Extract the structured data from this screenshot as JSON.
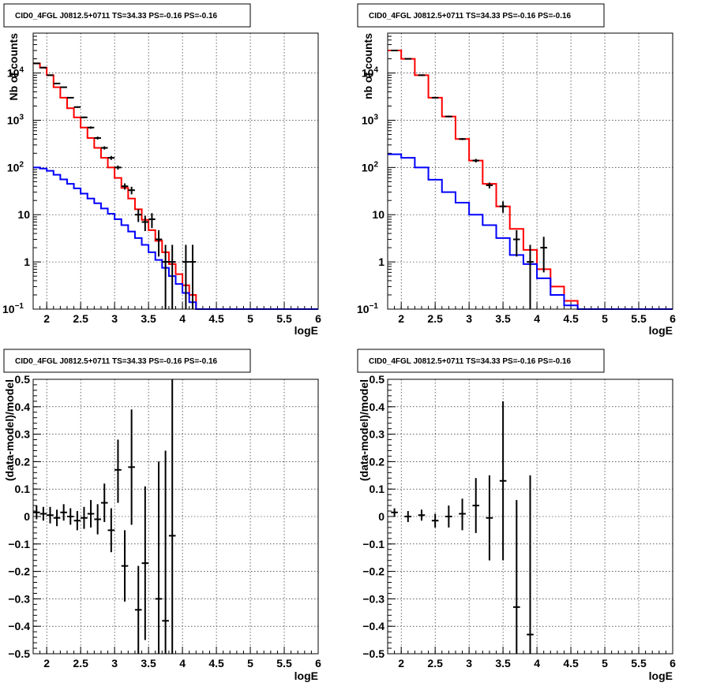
{
  "chart_data": [
    {
      "id": "top-left",
      "type": "line",
      "title": "CID0_4FGL J0812.5+0711 TS=34.33 PS=-0.16 PS=-0.16",
      "xlabel": "logE",
      "ylabel": "Nb of counts",
      "xlim": [
        1.8,
        6
      ],
      "ylim": [
        0.1,
        70000
      ],
      "yscale": "log",
      "grid": true,
      "xticks": [
        "2",
        "2.5",
        "3",
        "3.5",
        "4",
        "4.5",
        "5",
        "5.5",
        "6"
      ],
      "yticks": [
        {
          "v": 0.1,
          "label": "10",
          "sup": "−1"
        },
        {
          "v": 1,
          "label": "1"
        },
        {
          "v": 10,
          "label": "10"
        },
        {
          "v": 100,
          "label": "10",
          "sup": "2"
        },
        {
          "v": 1000,
          "label": "10",
          "sup": "3"
        },
        {
          "v": 10000,
          "label": "10",
          "sup": "4"
        }
      ],
      "series": [
        {
          "color": "#ff0000",
          "kind": "step",
          "edges": [
            1.8,
            1.9,
            2.0,
            2.1,
            2.2,
            2.3,
            2.4,
            2.5,
            2.6,
            2.7,
            2.8,
            2.9,
            3.0,
            3.1,
            3.2,
            3.3,
            3.4,
            3.5,
            3.6,
            3.7,
            3.8,
            3.9,
            4.0,
            4.1,
            4.2,
            4.3,
            4.4,
            4.5,
            4.6,
            4.7,
            4.8,
            4.9,
            5.0,
            5.1,
            5.2,
            5.3,
            5.4,
            5.5,
            5.6,
            5.7,
            5.8,
            5.9,
            6.0
          ],
          "values": [
            16000,
            13000,
            9000,
            5000,
            3000,
            1800,
            1150,
            700,
            420,
            260,
            160,
            100,
            60,
            37,
            22,
            13,
            7.8,
            4.7,
            2.8,
            1.6,
            0.9,
            0.55,
            0.32,
            0.2,
            0.1,
            0.1,
            0.1,
            0.1,
            0.1,
            0.1,
            0.1,
            0.1,
            0.1,
            0.1,
            0.1,
            0.1,
            0.1,
            0.1,
            0.1,
            0.1,
            0.1,
            0.1
          ]
        },
        {
          "color": "#0000ff",
          "kind": "step",
          "edges": [
            1.8,
            1.9,
            2.0,
            2.1,
            2.2,
            2.3,
            2.4,
            2.5,
            2.6,
            2.7,
            2.8,
            2.9,
            3.0,
            3.1,
            3.2,
            3.3,
            3.4,
            3.5,
            3.6,
            3.7,
            3.8,
            3.9,
            4.0,
            4.1,
            4.2,
            4.3,
            4.4,
            4.5,
            4.6,
            4.7,
            4.8,
            4.9,
            5.0,
            5.1,
            5.2,
            5.3,
            5.4,
            5.5,
            5.6,
            5.7,
            5.8,
            5.9,
            6.0
          ],
          "values": [
            100,
            95,
            85,
            70,
            56,
            45,
            36,
            28,
            22,
            17.5,
            13.5,
            10.5,
            8,
            6,
            4.4,
            3.2,
            2.3,
            1.6,
            1.1,
            0.75,
            0.5,
            0.34,
            0.22,
            0.14,
            0.1,
            0.1,
            0.1,
            0.1,
            0.1,
            0.1,
            0.1,
            0.1,
            0.1,
            0.1,
            0.1,
            0.1,
            0.1,
            0.1,
            0.1,
            0.1,
            0.1,
            0.1
          ]
        }
      ],
      "points": [
        {
          "x": 1.85,
          "y": 16000,
          "ylo": 15800,
          "yhi": 16200
        },
        {
          "x": 1.95,
          "y": 13000,
          "ylo": 12800,
          "yhi": 13200
        },
        {
          "x": 2.05,
          "y": 9000,
          "ylo": 8800,
          "yhi": 9200
        },
        {
          "x": 2.15,
          "y": 6000,
          "ylo": 5850,
          "yhi": 6150
        },
        {
          "x": 2.25,
          "y": 5000,
          "ylo": 4850,
          "yhi": 5150
        },
        {
          "x": 2.35,
          "y": 3000,
          "ylo": 2900,
          "yhi": 3100
        },
        {
          "x": 2.45,
          "y": 1900,
          "ylo": 1830,
          "yhi": 1970
        },
        {
          "x": 2.55,
          "y": 1150,
          "ylo": 1100,
          "yhi": 1200
        },
        {
          "x": 2.65,
          "y": 700,
          "ylo": 660,
          "yhi": 740
        },
        {
          "x": 2.75,
          "y": 420,
          "ylo": 390,
          "yhi": 450
        },
        {
          "x": 2.85,
          "y": 260,
          "ylo": 240,
          "yhi": 280
        },
        {
          "x": 2.95,
          "y": 160,
          "ylo": 145,
          "yhi": 175
        },
        {
          "x": 3.05,
          "y": 100,
          "ylo": 90,
          "yhi": 110
        },
        {
          "x": 3.15,
          "y": 40,
          "ylo": 34,
          "yhi": 46
        },
        {
          "x": 3.25,
          "y": 33,
          "ylo": 27,
          "yhi": 39
        },
        {
          "x": 3.35,
          "y": 10,
          "ylo": 7,
          "yhi": 13
        },
        {
          "x": 3.45,
          "y": 7,
          "ylo": 4.5,
          "yhi": 9.5
        },
        {
          "x": 3.55,
          "y": 8,
          "ylo": 5.2,
          "yhi": 10.8
        },
        {
          "x": 3.65,
          "y": 3,
          "ylo": 1.3,
          "yhi": 4.7
        },
        {
          "x": 3.75,
          "y": 1,
          "ylo": 0.1,
          "yhi": 2.3
        },
        {
          "x": 3.85,
          "y": 1,
          "ylo": 0.1,
          "yhi": 2.3
        },
        {
          "x": 4.05,
          "y": 1,
          "ylo": 0.1,
          "yhi": 2.3
        },
        {
          "x": 4.15,
          "y": 1,
          "ylo": 0.1,
          "yhi": 2.3
        }
      ]
    },
    {
      "id": "top-right",
      "type": "line",
      "title": "CID0_4FGL J0812.5+0711 TS=34.33 PS=-0.16 PS=-0.16",
      "xlabel": "logE",
      "ylabel": "nb of counts",
      "xlim": [
        1.8,
        6
      ],
      "ylim": [
        0.1,
        70000
      ],
      "yscale": "log",
      "grid": true,
      "xticks": [
        "2",
        "2.5",
        "3",
        "3.5",
        "4",
        "4.5",
        "5",
        "5.5",
        "6"
      ],
      "yticks": [
        {
          "v": 0.1,
          "label": "10",
          "sup": "−1"
        },
        {
          "v": 1,
          "label": "1"
        },
        {
          "v": 10,
          "label": "10"
        },
        {
          "v": 100,
          "label": "10",
          "sup": "2"
        },
        {
          "v": 1000,
          "label": "10",
          "sup": "3"
        },
        {
          "v": 10000,
          "label": "10",
          "sup": "4"
        }
      ],
      "series": [
        {
          "color": "#ff0000",
          "kind": "step",
          "edges": [
            1.8,
            2.0,
            2.2,
            2.4,
            2.6,
            2.8,
            3.0,
            3.2,
            3.4,
            3.6,
            3.8,
            4.0,
            4.2,
            4.4,
            4.6,
            4.8,
            5.0,
            5.2,
            5.4,
            5.6,
            5.8,
            6.0
          ],
          "values": [
            30000,
            20000,
            9000,
            3000,
            1200,
            400,
            140,
            45,
            15,
            5,
            1.8,
            0.7,
            0.3,
            0.15,
            0.1,
            0.1,
            0.1,
            0.1,
            0.1,
            0.1,
            0.1
          ]
        },
        {
          "color": "#0000ff",
          "kind": "step",
          "edges": [
            1.8,
            2.0,
            2.2,
            2.4,
            2.6,
            2.8,
            3.0,
            3.2,
            3.4,
            3.6,
            3.8,
            4.0,
            4.2,
            4.4,
            4.6,
            4.8,
            5.0,
            5.2,
            5.4,
            5.6,
            5.8,
            6.0
          ],
          "values": [
            190,
            160,
            100,
            55,
            30,
            18,
            10,
            6,
            3.2,
            1.4,
            0.9,
            0.45,
            0.2,
            0.12,
            0.1,
            0.1,
            0.1,
            0.1,
            0.1,
            0.1,
            0.1
          ]
        }
      ],
      "points": [
        {
          "x": 1.9,
          "y": 30000,
          "ylo": 29700,
          "yhi": 30300
        },
        {
          "x": 2.1,
          "y": 20000,
          "ylo": 19800,
          "yhi": 20200
        },
        {
          "x": 2.3,
          "y": 9000,
          "ylo": 8800,
          "yhi": 9200
        },
        {
          "x": 2.5,
          "y": 3000,
          "ylo": 2900,
          "yhi": 3100
        },
        {
          "x": 2.7,
          "y": 1200,
          "ylo": 1150,
          "yhi": 1250
        },
        {
          "x": 2.9,
          "y": 400,
          "ylo": 380,
          "yhi": 420
        },
        {
          "x": 3.1,
          "y": 140,
          "ylo": 128,
          "yhi": 152
        },
        {
          "x": 3.3,
          "y": 42,
          "ylo": 36,
          "yhi": 48
        },
        {
          "x": 3.5,
          "y": 15,
          "ylo": 11,
          "yhi": 19
        },
        {
          "x": 3.7,
          "y": 3,
          "ylo": 1.3,
          "yhi": 4.7
        },
        {
          "x": 3.9,
          "y": 1,
          "ylo": 0.1,
          "yhi": 2.3
        },
        {
          "x": 4.1,
          "y": 2,
          "ylo": 0.6,
          "yhi": 3.4
        }
      ]
    },
    {
      "id": "bottom-left",
      "type": "scatter",
      "title": "CID0_4FGL J0812.5+0711 TS=34.33 PS=-0.16 PS=-0.16",
      "xlabel": "logE",
      "ylabel": "(data-model)/model",
      "xlim": [
        1.8,
        6
      ],
      "ylim": [
        -0.5,
        0.5
      ],
      "yscale": "linear",
      "grid": true,
      "xticks": [
        "2",
        "2.5",
        "3",
        "3.5",
        "4",
        "4.5",
        "5",
        "5.5",
        "6"
      ],
      "yticks": [
        {
          "v": -0.5,
          "label": "−0.5"
        },
        {
          "v": -0.4,
          "label": "−0.4"
        },
        {
          "v": -0.3,
          "label": "−0.3"
        },
        {
          "v": -0.2,
          "label": "−0.2"
        },
        {
          "v": -0.1,
          "label": "−0.1"
        },
        {
          "v": 0,
          "label": "0"
        },
        {
          "v": 0.1,
          "label": "0.1"
        },
        {
          "v": 0.2,
          "label": "0.2"
        },
        {
          "v": 0.3,
          "label": "0.3"
        },
        {
          "v": 0.4,
          "label": "0.4"
        },
        {
          "v": 0.5,
          "label": "0.5"
        }
      ],
      "points": [
        {
          "x": 1.85,
          "y": 0.015,
          "ylo": -0.01,
          "yhi": 0.04
        },
        {
          "x": 1.95,
          "y": 0.01,
          "ylo": -0.015,
          "yhi": 0.035
        },
        {
          "x": 2.05,
          "y": 0.005,
          "ylo": -0.025,
          "yhi": 0.035
        },
        {
          "x": 2.15,
          "y": -0.005,
          "ylo": -0.035,
          "yhi": 0.025
        },
        {
          "x": 2.25,
          "y": 0.015,
          "ylo": -0.015,
          "yhi": 0.045
        },
        {
          "x": 2.35,
          "y": 0.0,
          "ylo": -0.03,
          "yhi": 0.03
        },
        {
          "x": 2.45,
          "y": -0.015,
          "ylo": -0.05,
          "yhi": 0.02
        },
        {
          "x": 2.55,
          "y": -0.005,
          "ylo": -0.045,
          "yhi": 0.035
        },
        {
          "x": 2.65,
          "y": 0.01,
          "ylo": -0.04,
          "yhi": 0.06
        },
        {
          "x": 2.75,
          "y": -0.01,
          "ylo": -0.065,
          "yhi": 0.045
        },
        {
          "x": 2.85,
          "y": 0.05,
          "ylo": -0.02,
          "yhi": 0.12
        },
        {
          "x": 2.95,
          "y": -0.05,
          "ylo": -0.13,
          "yhi": 0.03
        },
        {
          "x": 3.05,
          "y": 0.17,
          "ylo": 0.05,
          "yhi": 0.28
        },
        {
          "x": 3.15,
          "y": -0.18,
          "ylo": -0.31,
          "yhi": -0.05
        },
        {
          "x": 3.25,
          "y": 0.18,
          "ylo": -0.03,
          "yhi": 0.39
        },
        {
          "x": 3.35,
          "y": -0.34,
          "ylo": -0.5,
          "yhi": -0.18
        },
        {
          "x": 3.45,
          "y": -0.17,
          "ylo": -0.45,
          "yhi": 0.11
        },
        {
          "x": 3.65,
          "y": -0.3,
          "ylo": -0.5,
          "yhi": 0.2
        },
        {
          "x": 3.75,
          "y": -0.38,
          "ylo": -0.5,
          "yhi": 0.24
        },
        {
          "x": 3.85,
          "y": -0.07,
          "ylo": -0.5,
          "yhi": 0.5
        }
      ]
    },
    {
      "id": "bottom-right",
      "type": "scatter",
      "title": "CID0_4FGL J0812.5+0711 TS=34.33 PS=-0.16 PS=-0.16",
      "xlabel": "logE",
      "ylabel": "(data-model)/model",
      "xlim": [
        1.8,
        6
      ],
      "ylim": [
        -0.5,
        0.5
      ],
      "yscale": "linear",
      "grid": true,
      "xticks": [
        "2",
        "2.5",
        "3",
        "3.5",
        "4",
        "4.5",
        "5",
        "5.5",
        "6"
      ],
      "yticks": [
        {
          "v": -0.5,
          "label": "−0.5"
        },
        {
          "v": -0.4,
          "label": "−0.4"
        },
        {
          "v": -0.3,
          "label": "−0.3"
        },
        {
          "v": -0.2,
          "label": "−0.2"
        },
        {
          "v": -0.1,
          "label": "−0.1"
        },
        {
          "v": 0,
          "label": "0"
        },
        {
          "v": 0.1,
          "label": "0.1"
        },
        {
          "v": 0.2,
          "label": "0.2"
        },
        {
          "v": 0.3,
          "label": "0.3"
        },
        {
          "v": 0.4,
          "label": "0.4"
        },
        {
          "v": 0.5,
          "label": "0.5"
        }
      ],
      "points": [
        {
          "x": 1.9,
          "y": 0.015,
          "ylo": 0.0,
          "yhi": 0.03
        },
        {
          "x": 2.1,
          "y": 0.0,
          "ylo": -0.02,
          "yhi": 0.02
        },
        {
          "x": 2.3,
          "y": 0.005,
          "ylo": -0.015,
          "yhi": 0.025
        },
        {
          "x": 2.5,
          "y": -0.015,
          "ylo": -0.04,
          "yhi": 0.01
        },
        {
          "x": 2.7,
          "y": 0.0,
          "ylo": -0.04,
          "yhi": 0.04
        },
        {
          "x": 2.9,
          "y": 0.01,
          "ylo": -0.05,
          "yhi": 0.065
        },
        {
          "x": 3.1,
          "y": 0.04,
          "ylo": -0.06,
          "yhi": 0.14
        },
        {
          "x": 3.3,
          "y": -0.005,
          "ylo": -0.16,
          "yhi": 0.15
        },
        {
          "x": 3.5,
          "y": 0.13,
          "ylo": -0.16,
          "yhi": 0.42
        },
        {
          "x": 3.7,
          "y": -0.33,
          "ylo": -0.5,
          "yhi": 0.06
        },
        {
          "x": 3.9,
          "y": -0.43,
          "ylo": -0.5,
          "yhi": 0.15
        }
      ]
    }
  ]
}
